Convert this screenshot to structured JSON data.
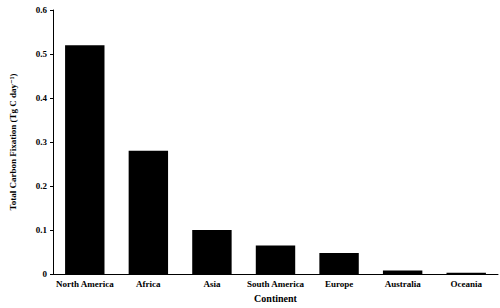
{
  "chart_data": {
    "type": "bar",
    "categories": [
      "North America",
      "Africa",
      "Asia",
      "South America",
      "Europe",
      "Australia",
      "Oceania"
    ],
    "values": [
      0.52,
      0.28,
      0.1,
      0.065,
      0.048,
      0.008,
      0.003
    ],
    "color": "#000000",
    "xlabel": "Continent",
    "ylabel": "Total Carbon Fixation (Tg C day⁻¹)",
    "ylim": [
      0,
      0.6
    ],
    "yticks": [
      0,
      0.1,
      0.2,
      0.3,
      0.4,
      0.5,
      0.6
    ],
    "grid": false
  }
}
